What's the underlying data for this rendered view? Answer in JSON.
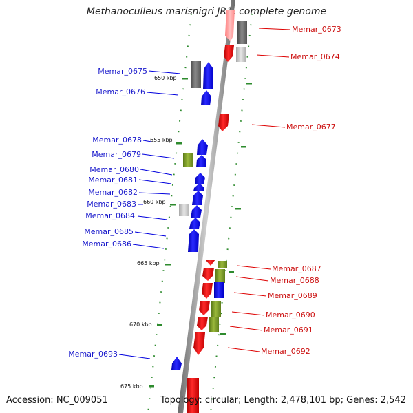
{
  "title": "Methanoculleus marisnigri JR1, complete genome",
  "footer": {
    "accession": "Accession: NC_009051",
    "topology": "Topology: circular; Length: 2,478,101 bp; Genes: 2,542"
  },
  "colors": {
    "forward_gene": "#ff0000",
    "reverse_gene": "#0000ff",
    "rna_gene": "#7a9a2a",
    "other_gene_dark": "#707070",
    "other_gene_light": "#c8c8c8",
    "backbone": "#8a8a8a",
    "tick": "#2e8b2e"
  },
  "ticks": [
    "650 kbp",
    "655 kbp",
    "660 kbp",
    "665 kbp",
    "670 kbp",
    "675 kbp"
  ],
  "labels_left": [
    "Memar_0675",
    "Memar_0676",
    "Memar_0678",
    "Memar_0679",
    "Memar_0680",
    "Memar_0681",
    "Memar_0682",
    "Memar_0683",
    "Memar_0684",
    "Memar_0685",
    "Memar_0686",
    "Memar_0693"
  ],
  "labels_right": [
    "Memar_0673",
    "Memar_0674",
    "Memar_0677",
    "Memar_0687",
    "Memar_0688",
    "Memar_0689",
    "Memar_0690",
    "Memar_0691",
    "Memar_0692"
  ]
}
